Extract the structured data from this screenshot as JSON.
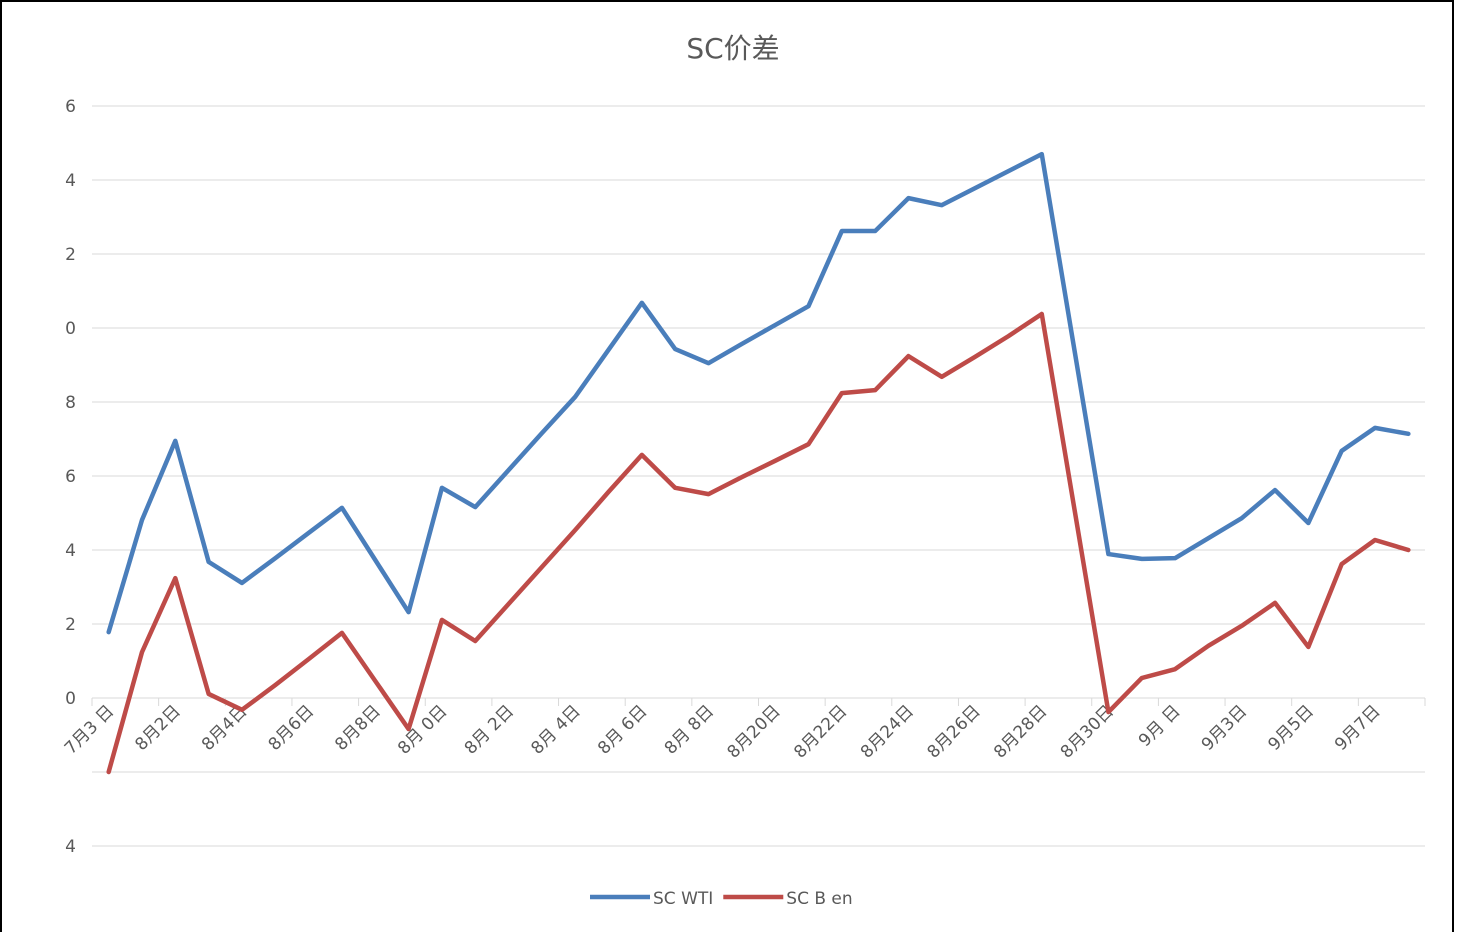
{
  "chart_data": {
    "type": "line",
    "title": "SC价差",
    "categories": [
      "7月3 日",
      null,
      "8月2日",
      null,
      "8月4日",
      null,
      "8月6日",
      null,
      "8月8日",
      null,
      "8月 0日",
      null,
      "8月 2日",
      null,
      "8月 4日",
      null,
      "8月 6日",
      null,
      "8月 8日",
      null,
      "8月20日",
      null,
      "8月22日",
      null,
      "8月24日",
      null,
      "8月26日",
      null,
      "8月28日",
      null,
      "8月30日",
      null,
      "9月 日",
      null,
      "9月3日",
      null,
      "9月5日",
      null,
      "9月7日",
      null
    ],
    "series": [
      {
        "name": "SC WTI",
        "color": "#4a7ebb",
        "values": [
          1.78,
          4.81,
          6.95,
          3.68,
          3.11,
          3.78,
          4.46,
          5.14,
          3.73,
          2.32,
          5.68,
          5.16,
          6.16,
          7.16,
          8.14,
          9.41,
          10.68,
          9.43,
          9.05,
          9.57,
          10.08,
          10.59,
          12.62,
          12.62,
          13.51,
          13.32,
          13.78,
          14.24,
          14.7,
          9.3,
          3.89,
          3.76,
          3.78,
          4.32,
          4.86,
          5.62,
          4.73,
          6.68,
          7.3,
          7.14
        ]
      },
      {
        "name": "SC B en",
        "color": "#be4b48",
        "values": [
          -2.0,
          1.24,
          3.24,
          0.11,
          -0.32,
          0.35,
          1.05,
          1.76,
          0.46,
          -0.84,
          2.11,
          1.54,
          2.54,
          3.54,
          4.54,
          5.57,
          6.57,
          5.68,
          5.51,
          5.97,
          6.41,
          6.86,
          8.24,
          8.32,
          9.24,
          8.68,
          9.22,
          9.78,
          10.38,
          5.0,
          -0.38,
          0.54,
          0.78,
          1.41,
          1.95,
          2.57,
          1.38,
          3.62,
          4.27,
          4.0
        ]
      }
    ],
    "ylim": [
      -4,
      16
    ],
    "yticks": [
      {
        "value": -4,
        "label": "4"
      },
      {
        "value": -2,
        "label": null
      },
      0,
      {
        "value": 2,
        "label": "2"
      },
      {
        "value": 4,
        "label": "4"
      },
      6,
      8,
      {
        "value": 10,
        "label": "0"
      },
      {
        "value": 12,
        "label": "2"
      },
      {
        "value": 14,
        "label": "4"
      },
      {
        "value": 16,
        "label": "6"
      }
    ],
    "grid": true
  }
}
